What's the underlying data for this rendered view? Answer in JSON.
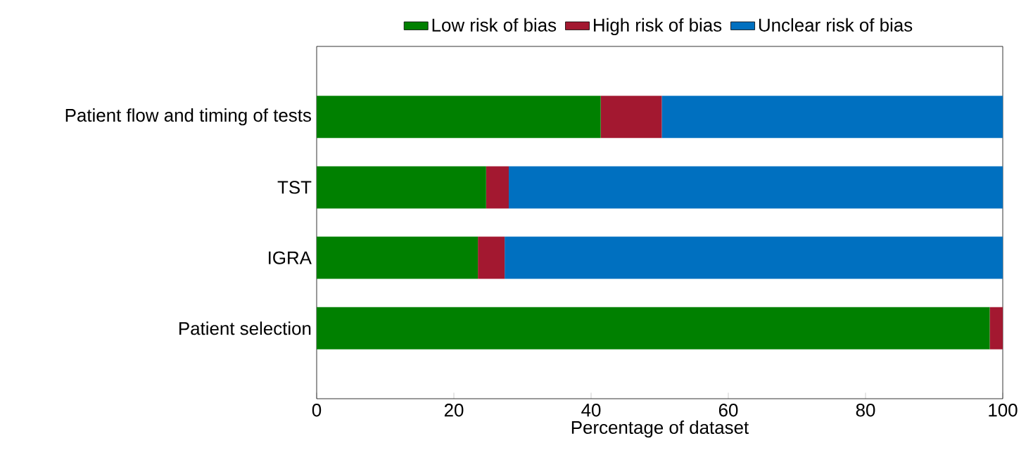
{
  "chart_data": {
    "type": "bar",
    "orientation": "horizontal",
    "stacked": true,
    "xlabel": "Percentage of dataset",
    "categories": [
      "Patient flow and timing of tests",
      "TST",
      "IGRA",
      "Patient selection"
    ],
    "series": [
      {
        "name": "Low risk of bias",
        "color": "#008000",
        "values": [
          41.4,
          24.7,
          23.5,
          98.1
        ]
      },
      {
        "name": "High risk of bias",
        "color": "#a31830",
        "values": [
          8.9,
          3.3,
          3.9,
          1.9
        ]
      },
      {
        "name": "Unclear risk of bias",
        "color": "#0070c0",
        "values": [
          49.7,
          72.0,
          72.6,
          0
        ]
      }
    ],
    "xlim": [
      0,
      100
    ],
    "xticks": [
      0,
      20,
      40,
      60,
      80,
      100
    ],
    "legend": "top"
  }
}
